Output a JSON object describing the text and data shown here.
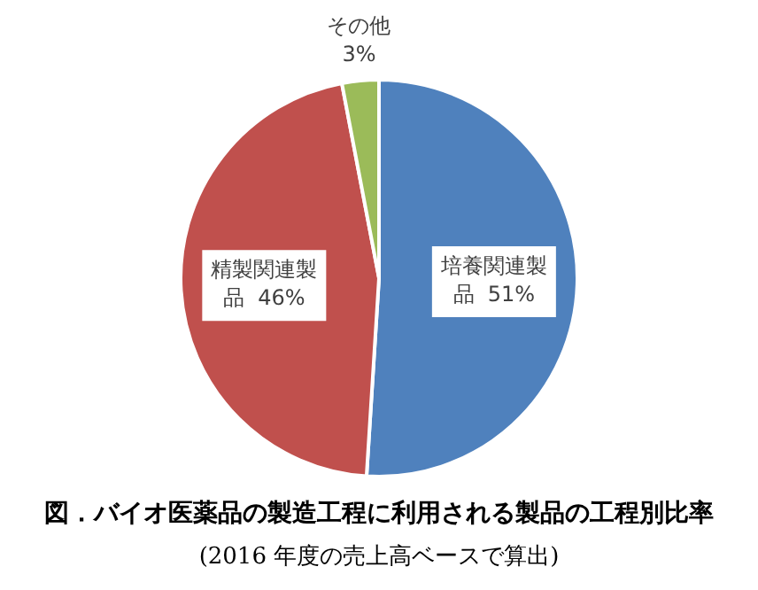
{
  "chart_data": {
    "type": "pie",
    "title": "図．バイオ医薬品の製造工程に利用される製品の工程別比率",
    "subtitle": "(2016 年度の売上高ベースで算出)",
    "categories": [
      "培養関連製品",
      "精製関連製品",
      "その他"
    ],
    "values": [
      51,
      46,
      3
    ],
    "colors": [
      "#4f81bd",
      "#c0504d",
      "#9bbb59"
    ],
    "value_labels": [
      "51%",
      "46%",
      "3%"
    ],
    "legend": false
  }
}
